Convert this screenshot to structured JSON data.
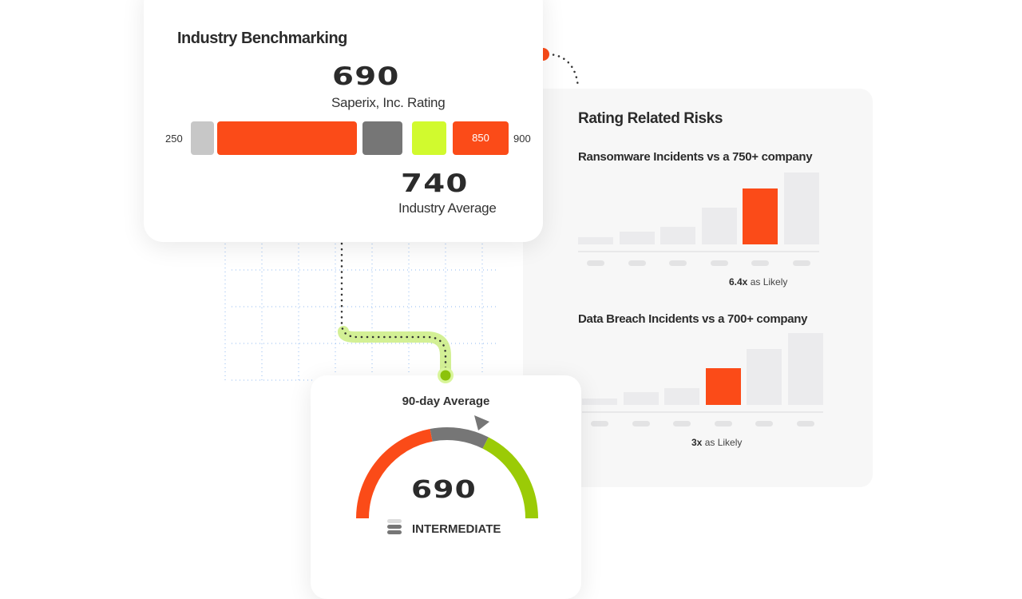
{
  "colors": {
    "orange": "#fb4b18",
    "light_gray": "#c7c7c7",
    "dark_gray": "#767676",
    "lime": "#d1fa2e",
    "green": "#9bcb06",
    "bar_gray": "#ebebed",
    "grid_blue": "#8fb8f0"
  },
  "benchmark": {
    "title": "Industry Benchmarking",
    "company_rating": "690",
    "company_label": "Saperix, Inc. Rating",
    "industry_average": "740",
    "industry_label": "Industry Average",
    "scale_min": "250",
    "scale_max": "900",
    "segment_marker": "850"
  },
  "risks": {
    "title": "Rating Related Risks",
    "charts": [
      {
        "subtitle": "Ransomware Incidents vs a 750+ company",
        "likely_value": "6.4x",
        "likely_text": "as Likely"
      },
      {
        "subtitle": "Data Breach Incidents vs a 700+ company",
        "likely_value": "3x",
        "likely_text": "as Likely"
      }
    ]
  },
  "chart_data": [
    {
      "type": "bar",
      "title": "Ransomware Incidents vs a 750+ company",
      "values": [
        9,
        16,
        22,
        46,
        70,
        90
      ],
      "highlight_index": 4,
      "annotation": "6.4x as Likely"
    },
    {
      "type": "bar",
      "title": "Data Breach Incidents vs a 700+ company",
      "values": [
        8,
        16,
        21,
        45,
        68,
        88
      ],
      "highlight_index": 3,
      "annotation": "3x as Likely"
    }
  ],
  "gauge": {
    "title": "90-day Average",
    "value": "690",
    "level": "INTERMEDIATE",
    "segments": [
      {
        "color": "#fb4b18",
        "share": 0.44
      },
      {
        "color": "#767676",
        "share": 0.21
      },
      {
        "color": "#9bcb06",
        "share": 0.35
      }
    ]
  }
}
